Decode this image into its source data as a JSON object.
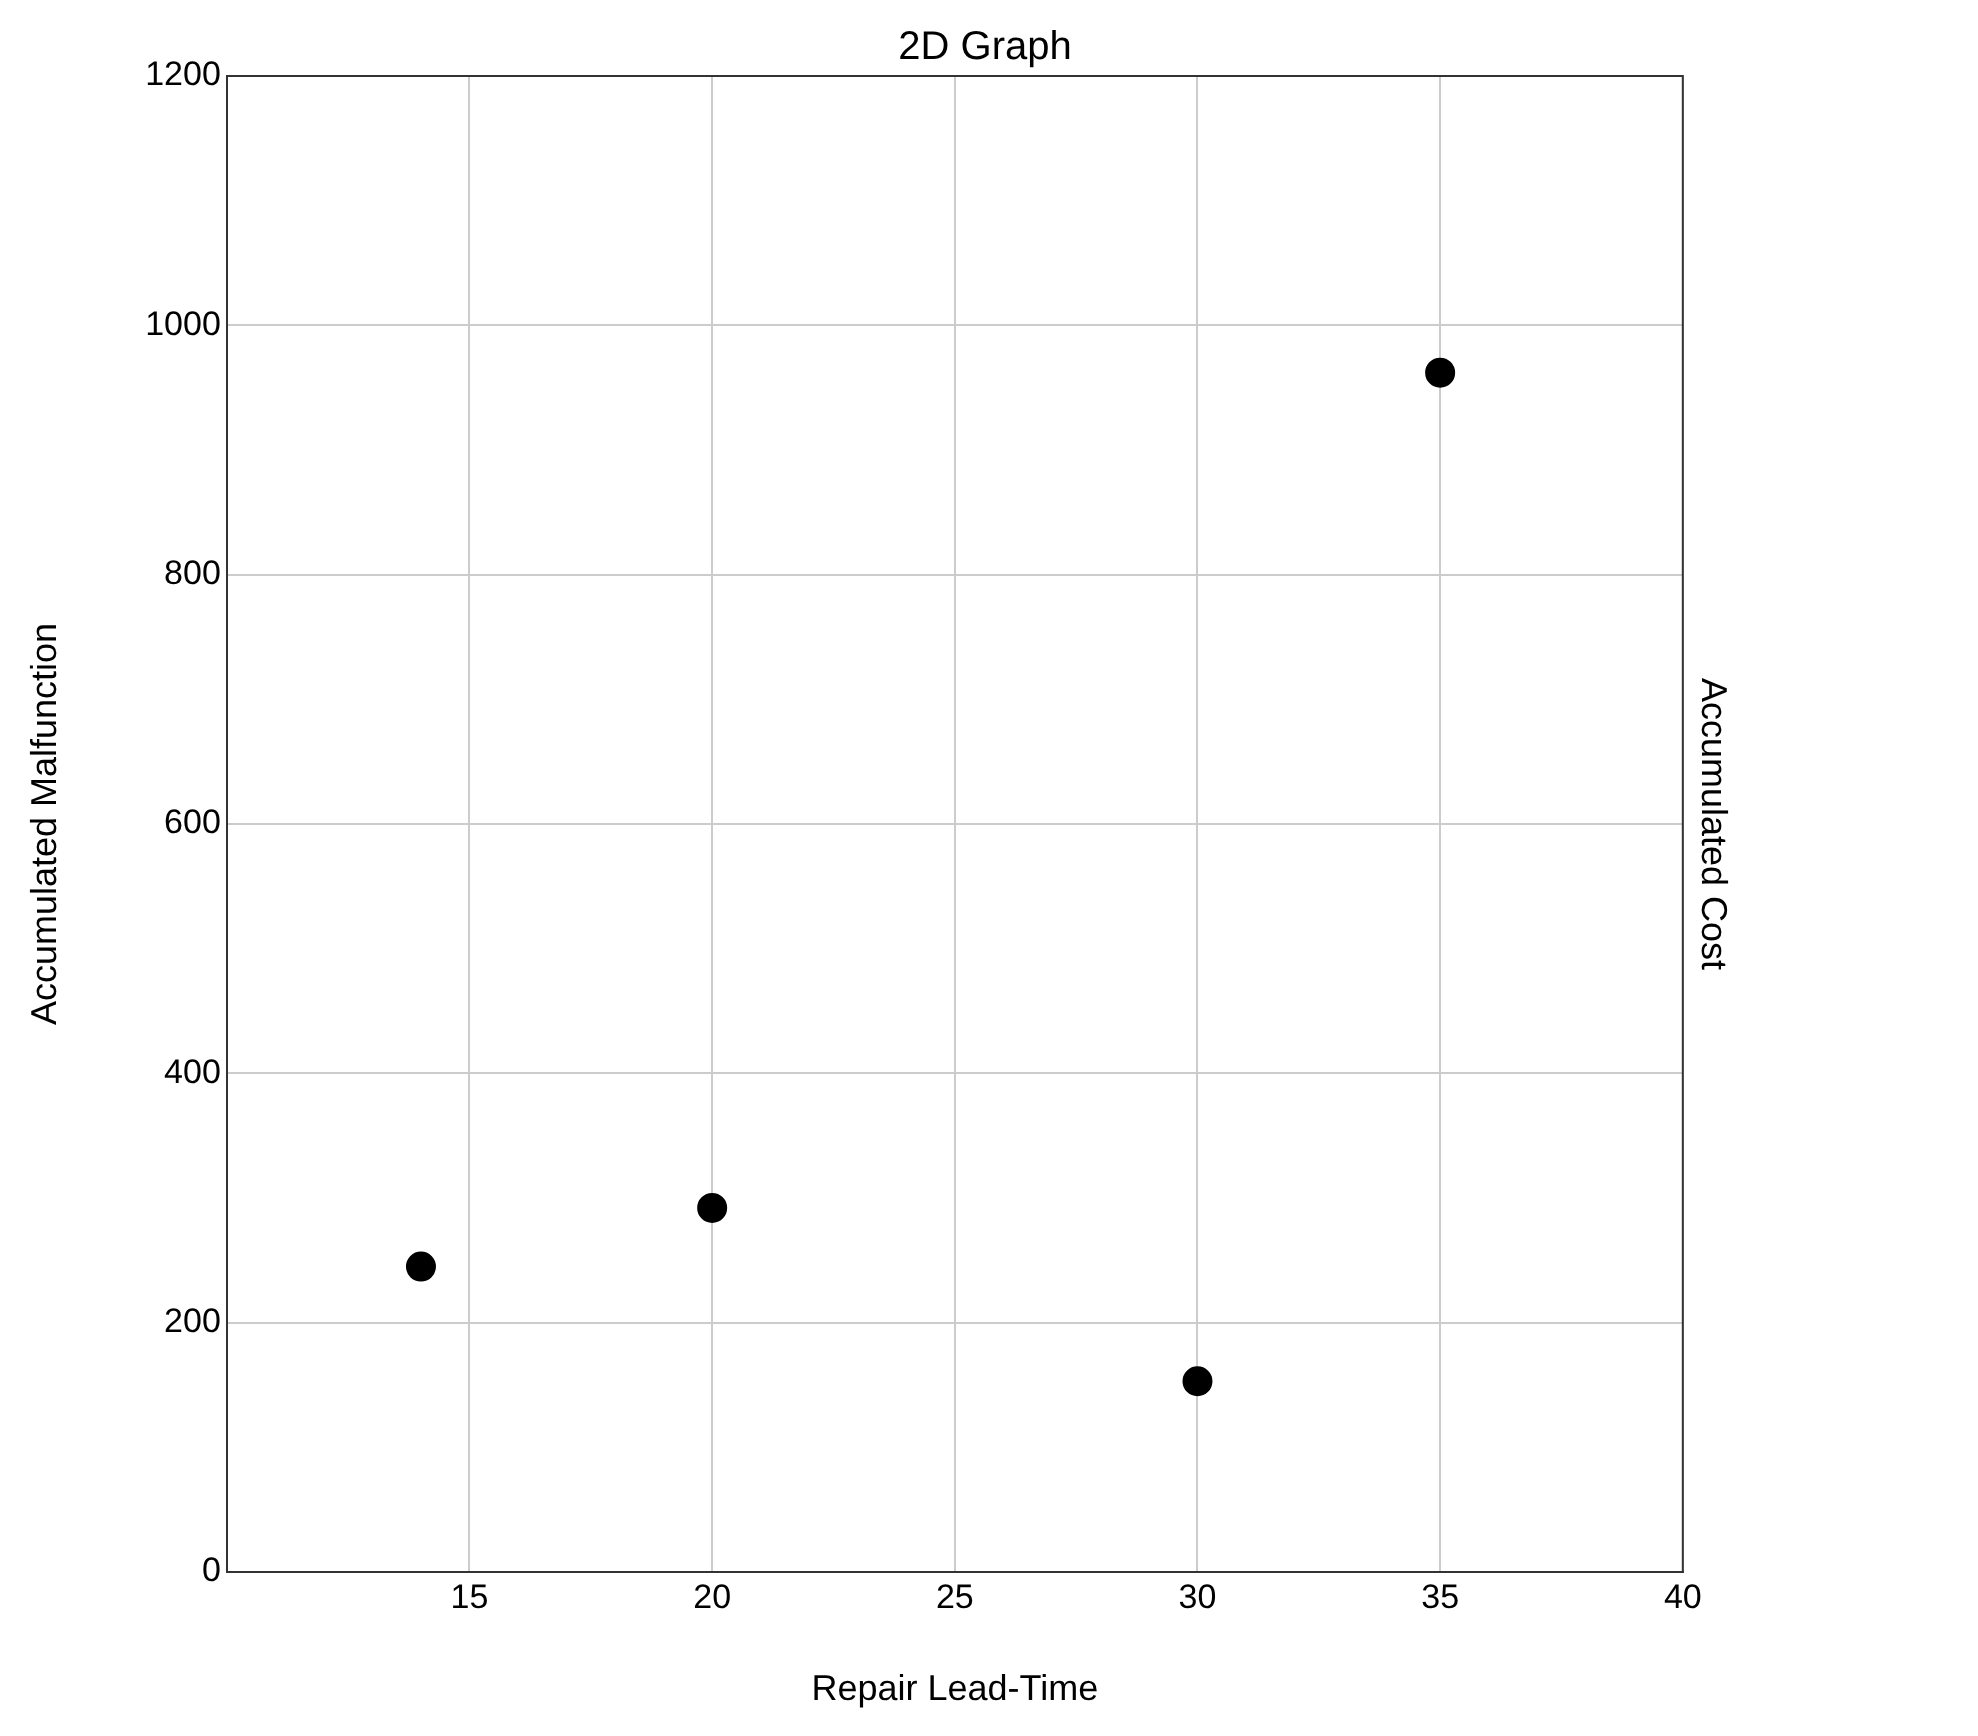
{
  "chart_data": {
    "type": "scatter",
    "title": "2D Graph",
    "xlabel": "Repair Lead-Time",
    "ylabel": "Accumulated Malfunction",
    "y2label": "Accumulated Cost",
    "x": [
      14,
      20,
      30,
      35
    ],
    "series": [
      {
        "color": "#000000",
        "values": [
          245,
          292,
          153,
          962
        ]
      }
    ],
    "xlim": [
      10,
      40
    ],
    "xticks": [
      15,
      20,
      25,
      30,
      35,
      40
    ],
    "ylim": [
      0,
      1200
    ],
    "yticks": [
      0,
      200,
      400,
      600,
      800,
      1000,
      1200
    ],
    "grid": true,
    "legend": false,
    "marker": "circle"
  }
}
